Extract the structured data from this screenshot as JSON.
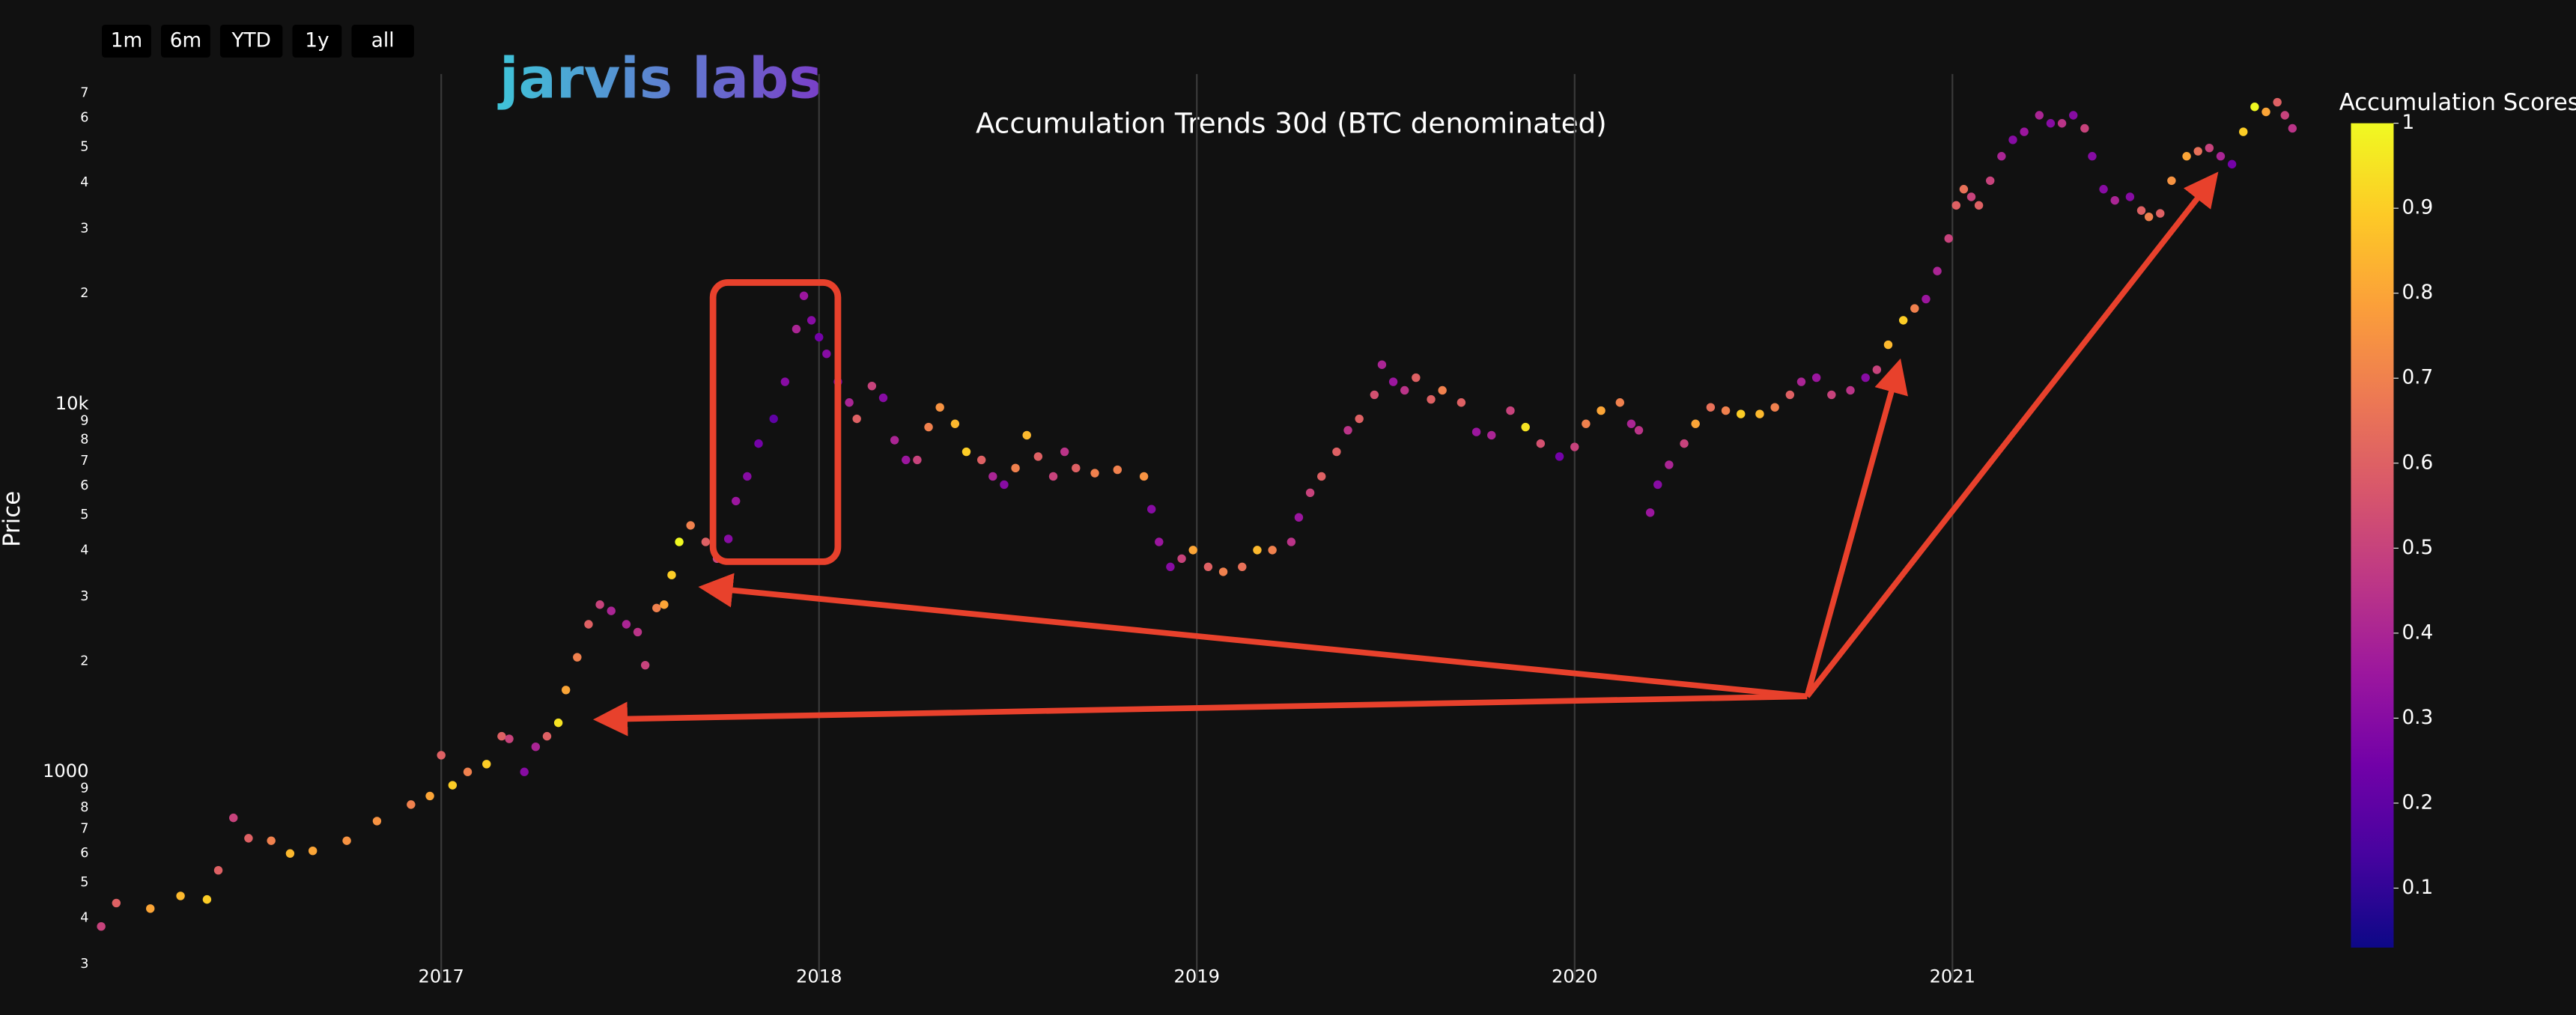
{
  "logo": "jarvis labs",
  "range_buttons": [
    "1m",
    "6m",
    "YTD",
    "1y",
    "all"
  ],
  "chart_data": {
    "type": "scatter",
    "title": "Accumulation Trends 30d (BTC denominated)",
    "ylabel": "Price",
    "log_y": true,
    "grid": true,
    "xlim": [
      2016.08,
      2021.92
    ],
    "xticks": [
      2017,
      2018,
      2019,
      2020,
      2021
    ],
    "ylim": [
      271,
      79000
    ],
    "yticks": [
      {
        "value": 300,
        "label": "3"
      },
      {
        "value": 400,
        "label": "4"
      },
      {
        "value": 500,
        "label": "5"
      },
      {
        "value": 600,
        "label": "6"
      },
      {
        "value": 700,
        "label": "7"
      },
      {
        "value": 800,
        "label": "8"
      },
      {
        "value": 900,
        "label": "9"
      },
      1000,
      {
        "value": 2000,
        "label": "2"
      },
      {
        "value": 3000,
        "label": "3"
      },
      {
        "value": 4000,
        "label": "4"
      },
      {
        "value": 5000,
        "label": "5"
      },
      {
        "value": 6000,
        "label": "6"
      },
      {
        "value": 7000,
        "label": "7"
      },
      {
        "value": 8000,
        "label": "8"
      },
      {
        "value": 9000,
        "label": "9"
      },
      {
        "value": 10000,
        "label": "10k"
      },
      {
        "value": 20000,
        "label": "2"
      },
      {
        "value": 30000,
        "label": "3"
      },
      {
        "value": 40000,
        "label": "4"
      },
      {
        "value": 50000,
        "label": "5"
      },
      {
        "value": 60000,
        "label": "6"
      },
      {
        "value": 70000,
        "label": "7"
      }
    ],
    "x": [
      2016.1,
      2016.14,
      2016.23,
      2016.31,
      2016.38,
      2016.41,
      2016.45,
      2016.49,
      2016.55,
      2016.6,
      2016.66,
      2016.75,
      2016.83,
      2016.92,
      2016.97,
      2017.0,
      2017.03,
      2017.07,
      2017.12,
      2017.16,
      2017.18,
      2017.22,
      2017.25,
      2017.28,
      2017.31,
      2017.33,
      2017.36,
      2017.39,
      2017.42,
      2017.45,
      2017.49,
      2017.52,
      2017.54,
      2017.57,
      2017.59,
      2017.61,
      2017.63,
      2017.66,
      2017.7,
      2017.73,
      2017.76,
      2017.78,
      2017.81,
      2017.84,
      2017.88,
      2017.91,
      2017.94,
      2017.96,
      2017.98,
      2018.0,
      2018.02,
      2018.05,
      2018.08,
      2018.1,
      2018.14,
      2018.17,
      2018.2,
      2018.23,
      2018.26,
      2018.29,
      2018.32,
      2018.36,
      2018.39,
      2018.43,
      2018.46,
      2018.49,
      2018.52,
      2018.55,
      2018.58,
      2018.62,
      2018.65,
      2018.68,
      2018.73,
      2018.79,
      2018.86,
      2018.88,
      2018.9,
      2018.93,
      2018.96,
      2018.99,
      2019.03,
      2019.07,
      2019.12,
      2019.16,
      2019.2,
      2019.25,
      2019.27,
      2019.3,
      2019.33,
      2019.37,
      2019.4,
      2019.43,
      2019.47,
      2019.49,
      2019.52,
      2019.55,
      2019.58,
      2019.62,
      2019.65,
      2019.7,
      2019.74,
      2019.78,
      2019.83,
      2019.87,
      2019.91,
      2019.96,
      2020.0,
      2020.03,
      2020.07,
      2020.12,
      2020.15,
      2020.17,
      2020.2,
      2020.22,
      2020.25,
      2020.29,
      2020.32,
      2020.36,
      2020.4,
      2020.44,
      2020.49,
      2020.53,
      2020.57,
      2020.6,
      2020.64,
      2020.68,
      2020.73,
      2020.77,
      2020.8,
      2020.83,
      2020.87,
      2020.9,
      2020.93,
      2020.96,
      2020.99,
      2021.01,
      2021.03,
      2021.05,
      2021.07,
      2021.1,
      2021.13,
      2021.16,
      2021.19,
      2021.23,
      2021.26,
      2021.29,
      2021.32,
      2021.35,
      2021.37,
      2021.4,
      2021.43,
      2021.47,
      2021.5,
      2021.52,
      2021.55,
      2021.58,
      2021.62,
      2021.65,
      2021.68,
      2021.71,
      2021.74,
      2021.77,
      2021.8,
      2021.83,
      2021.86,
      2021.88,
      2021.9
    ],
    "y": [
      380,
      440,
      425,
      460,
      450,
      540,
      750,
      660,
      650,
      600,
      610,
      650,
      735,
      815,
      860,
      1110,
      920,
      1000,
      1050,
      1250,
      1230,
      1000,
      1170,
      1250,
      1360,
      1670,
      2050,
      2520,
      2850,
      2740,
      2520,
      2400,
      1950,
      2790,
      2850,
      3430,
      4220,
      4680,
      4220,
      3800,
      4300,
      5450,
      6360,
      7810,
      9120,
      11500,
      16000,
      19700,
      16900,
      15200,
      13700,
      11500,
      10100,
      9120,
      11200,
      10400,
      7980,
      7050,
      7050,
      8660,
      9800,
      8840,
      7420,
      7050,
      6360,
      6040,
      6700,
      8230,
      7200,
      6360,
      7420,
      6700,
      6490,
      6630,
      6360,
      5180,
      4220,
      3610,
      3800,
      4010,
      3610,
      3500,
      3610,
      4010,
      4010,
      4220,
      4920,
      5740,
      6360,
      7420,
      8490,
      9120,
      10600,
      12800,
      11500,
      10900,
      11800,
      10300,
      10900,
      10100,
      8400,
      8230,
      9600,
      8660,
      7810,
      7200,
      7650,
      8840,
      9600,
      10100,
      8840,
      8490,
      5070,
      6040,
      6840,
      7810,
      8840,
      9800,
      9600,
      9400,
      9400,
      9800,
      10600,
      11500,
      11800,
      10600,
      10900,
      11800,
      12400,
      14500,
      16900,
      18200,
      19300,
      23000,
      28200,
      34700,
      38400,
      36600,
      34700,
      40500,
      47200,
      52300,
      55000,
      61000,
      58000,
      58000,
      61000,
      56200,
      47200,
      38400,
      35800,
      36600,
      33600,
      32300,
      33000,
      40500,
      47200,
      48700,
      49700,
      47200,
      44900,
      55000,
      64300,
      62300,
      66200,
      61000,
      56200
    ],
    "scores": [
      0.5,
      0.6,
      0.8,
      0.85,
      0.9,
      0.6,
      0.5,
      0.6,
      0.7,
      0.85,
      0.8,
      0.75,
      0.75,
      0.7,
      0.8,
      0.6,
      0.9,
      0.7,
      0.9,
      0.6,
      0.5,
      0.3,
      0.4,
      0.6,
      0.95,
      0.8,
      0.7,
      0.6,
      0.5,
      0.4,
      0.4,
      0.45,
      0.5,
      0.7,
      0.8,
      0.9,
      1.0,
      0.7,
      0.6,
      0.5,
      0.3,
      0.35,
      0.3,
      0.25,
      0.2,
      0.3,
      0.4,
      0.35,
      0.3,
      0.25,
      0.3,
      0.25,
      0.4,
      0.6,
      0.5,
      0.3,
      0.4,
      0.35,
      0.5,
      0.7,
      0.75,
      0.85,
      0.9,
      0.6,
      0.4,
      0.3,
      0.7,
      0.85,
      0.6,
      0.5,
      0.45,
      0.6,
      0.7,
      0.7,
      0.75,
      0.3,
      0.35,
      0.3,
      0.5,
      0.8,
      0.6,
      0.7,
      0.65,
      0.85,
      0.7,
      0.45,
      0.35,
      0.5,
      0.6,
      0.6,
      0.45,
      0.6,
      0.55,
      0.4,
      0.35,
      0.45,
      0.6,
      0.6,
      0.7,
      0.6,
      0.35,
      0.4,
      0.5,
      0.95,
      0.55,
      0.25,
      0.5,
      0.7,
      0.8,
      0.7,
      0.4,
      0.45,
      0.35,
      0.3,
      0.4,
      0.5,
      0.8,
      0.65,
      0.7,
      0.9,
      0.85,
      0.7,
      0.6,
      0.4,
      0.35,
      0.5,
      0.45,
      0.3,
      0.5,
      0.85,
      0.9,
      0.7,
      0.35,
      0.4,
      0.5,
      0.6,
      0.65,
      0.5,
      0.6,
      0.5,
      0.4,
      0.3,
      0.35,
      0.4,
      0.3,
      0.45,
      0.3,
      0.5,
      0.3,
      0.3,
      0.4,
      0.3,
      0.6,
      0.7,
      0.6,
      0.75,
      0.8,
      0.65,
      0.5,
      0.4,
      0.25,
      0.9,
      1.0,
      0.8,
      0.6,
      0.5,
      0.45
    ],
    "colorbar": {
      "title": "Accumulation Scores",
      "range": [
        0.03,
        1
      ],
      "ticks": [
        0.1,
        0.2,
        0.3,
        0.4,
        0.5,
        0.6,
        0.7,
        0.8,
        0.9,
        1
      ],
      "colorscale": [
        "#0d0887",
        "#46039f",
        "#7201a8",
        "#9c179e",
        "#bd3786",
        "#d8576b",
        "#ed7953",
        "#fb9f3a",
        "#fdca26",
        "#f0f921"
      ]
    }
  }
}
